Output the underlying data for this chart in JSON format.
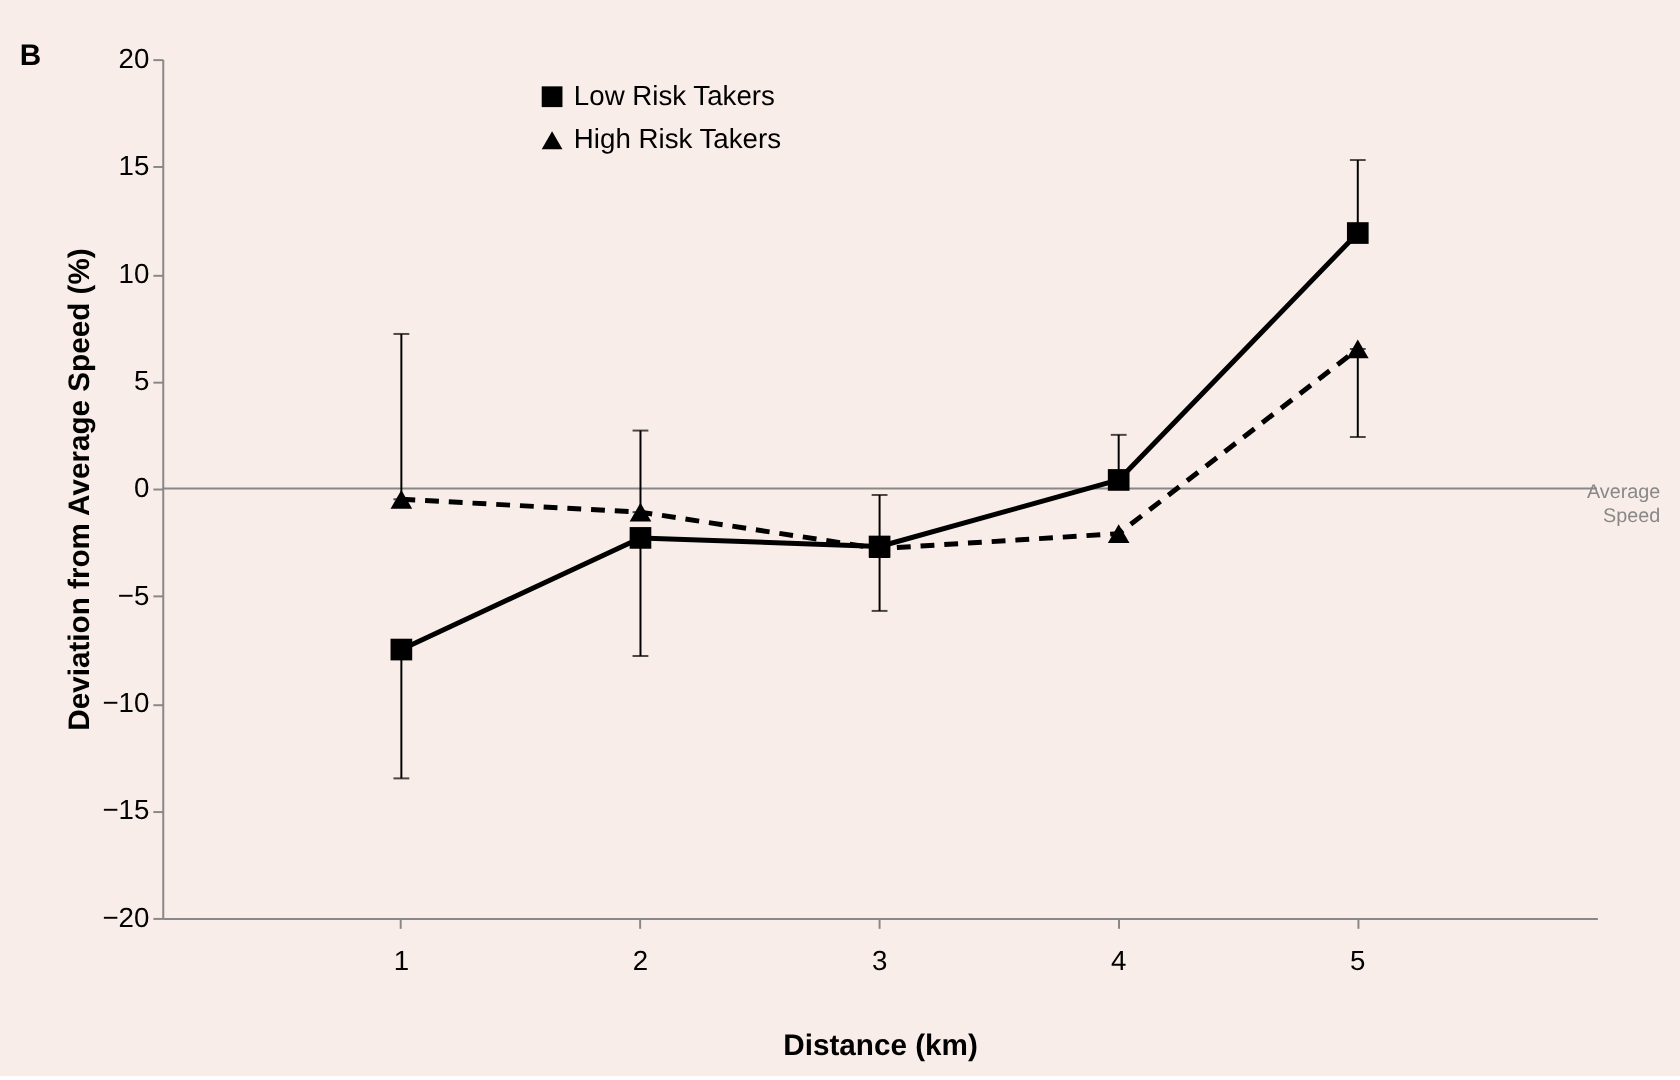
{
  "chart_data": {
    "type": "line",
    "xlabel": "Distance (km)",
    "ylabel": "Deviation from Average Speed (%)",
    "annotations": [
      "B"
    ],
    "categories": [
      "1",
      "2",
      "3",
      "4",
      "5"
    ],
    "series": [
      {
        "name": "Low Risk Takers",
        "color": "#000000",
        "marker": "square",
        "line_style": "solid",
        "values": [
          -7.5,
          -2.3,
          -2.7,
          0.4,
          11.9
        ],
        "errors": [
          [
            -13.5,
            -7.5
          ],
          [
            -7.8,
            -2.3
          ],
          [
            -2.7,
            -0.3
          ],
          [
            0.4,
            2.5
          ],
          [
            11.9,
            15.3
          ]
        ]
      },
      {
        "name": "High Risk Takers",
        "color": "#000000",
        "marker": "triangle",
        "line_style": "dashed",
        "values": [
          -0.5,
          -1.1,
          -2.8,
          -2.1,
          6.5
        ],
        "errors": [
          [
            -0.5,
            7.2
          ],
          [
            -1.1,
            2.7
          ],
          [
            -5.7,
            -2.8
          ],
          null,
          [
            2.4,
            6.5
          ]
        ]
      }
    ],
    "ylim": [
      -20,
      20
    ],
    "yticks": [
      -20,
      -15,
      -10,
      -5,
      0,
      5,
      10,
      15,
      20
    ],
    "grid": false,
    "legend": "top",
    "ref_lines": [
      {
        "axis": "y",
        "value": 0,
        "label": "Average Speed",
        "color": "#888888"
      }
    ]
  }
}
